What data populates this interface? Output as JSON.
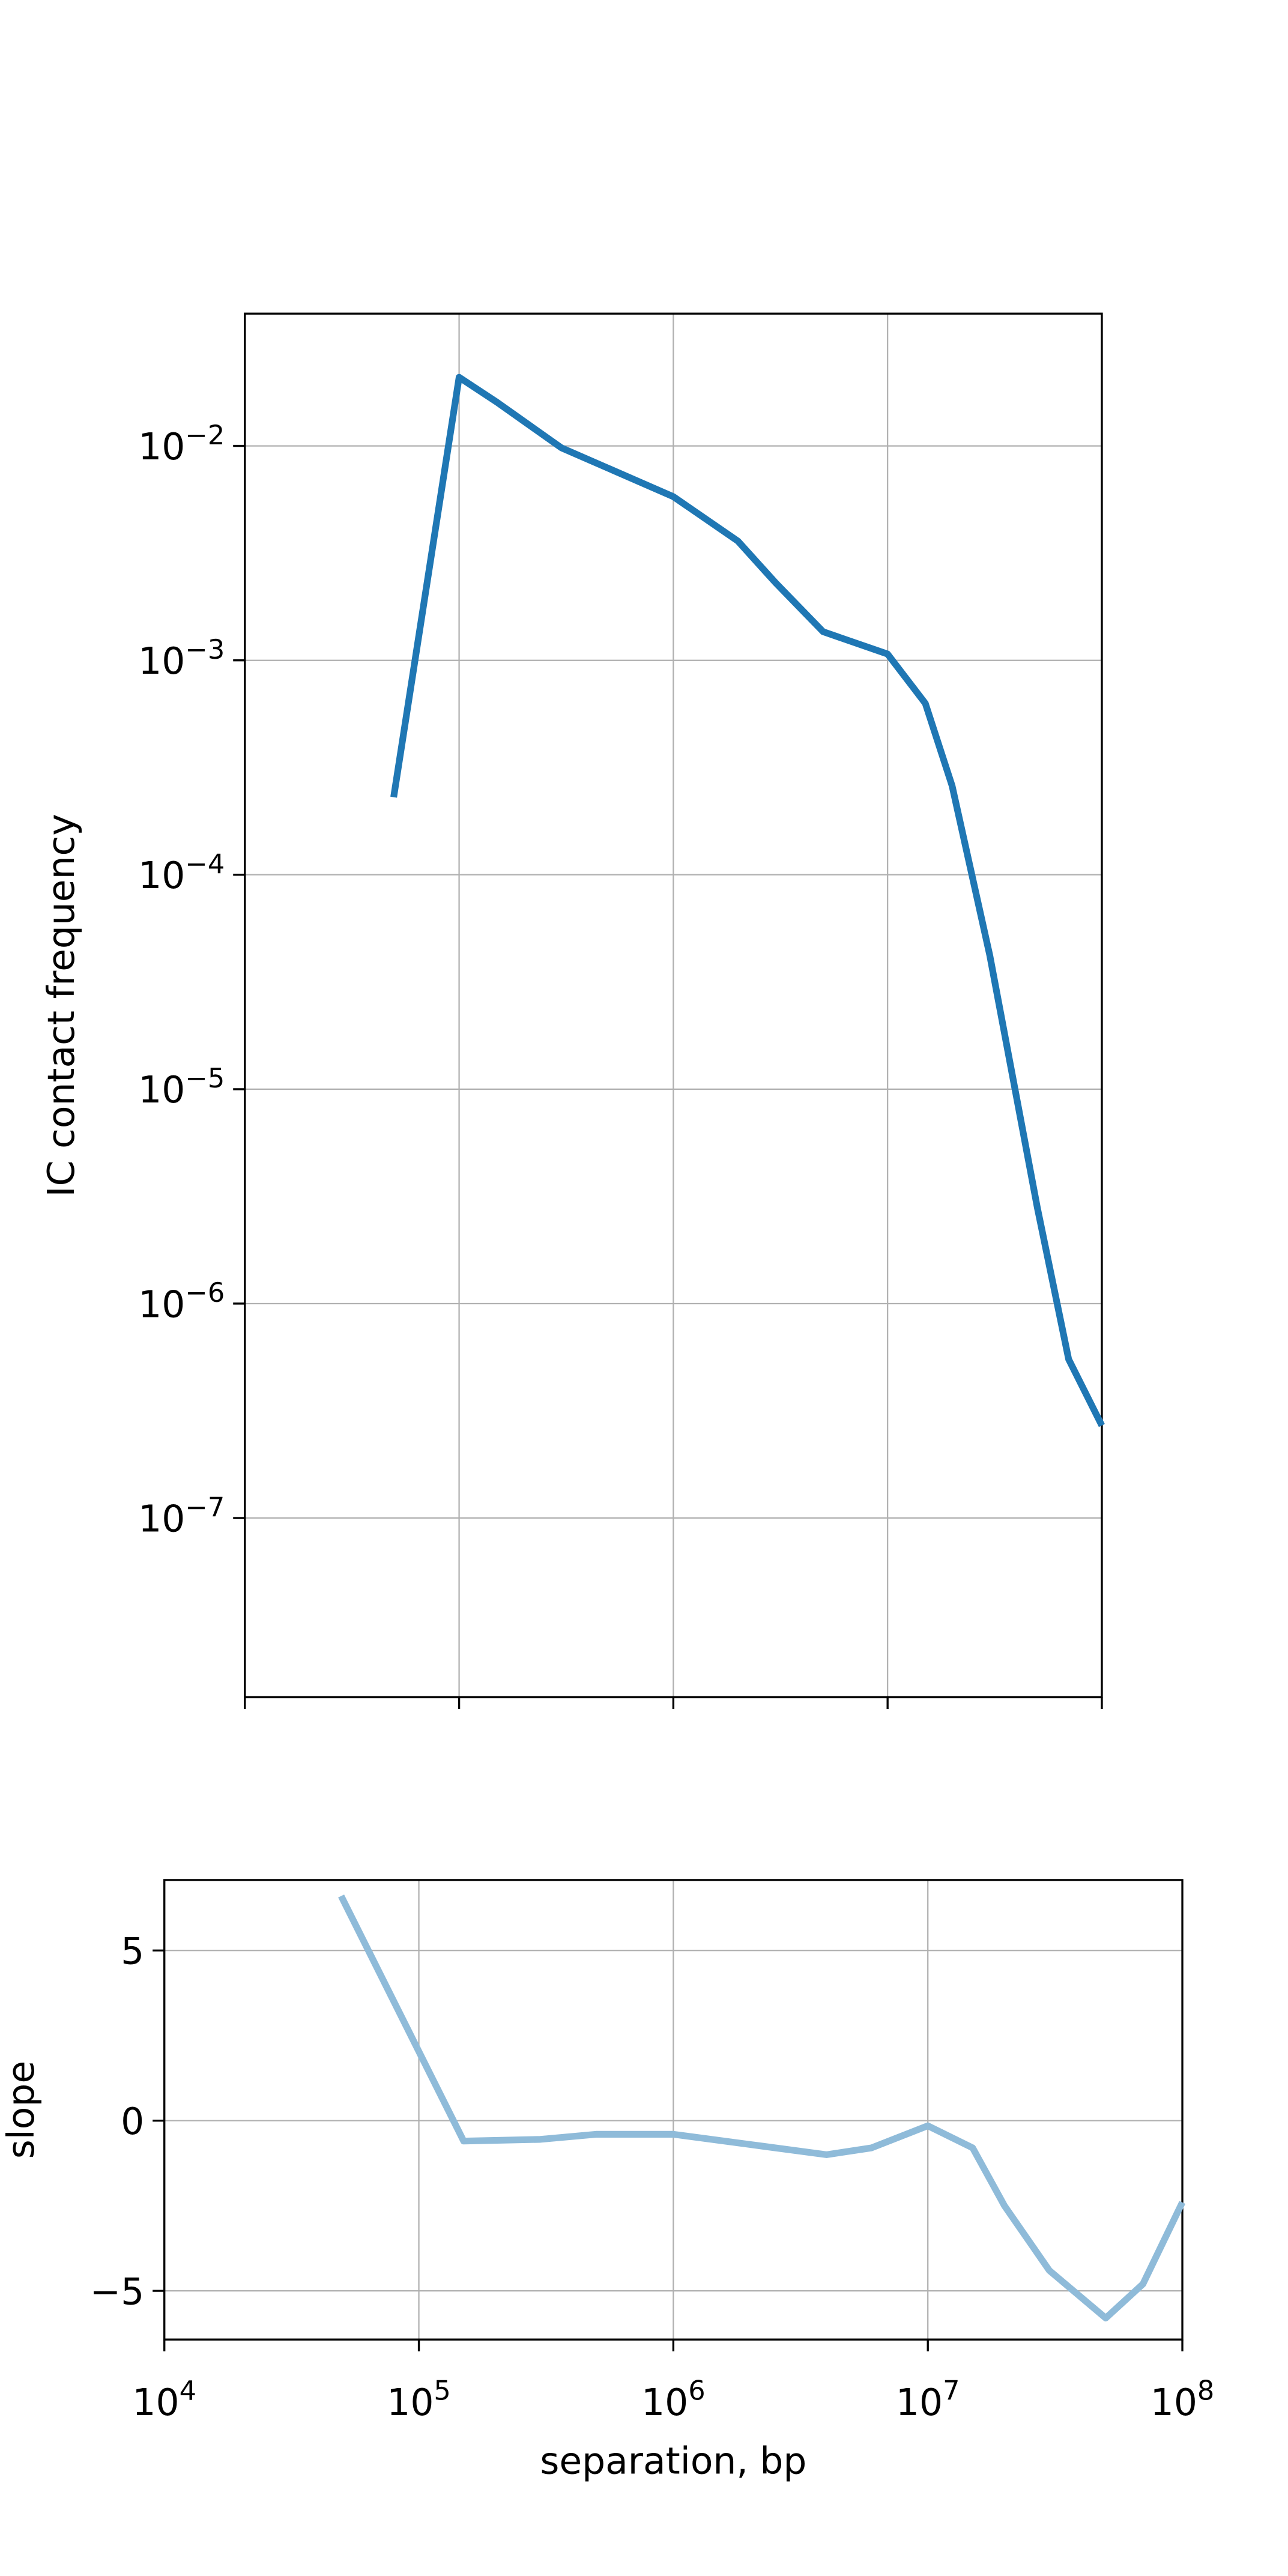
{
  "chart_data": [
    {
      "type": "line",
      "ylabel": "IC contact frequency",
      "color": "#1f77b4",
      "log_x": true,
      "log_y": true,
      "grid": true,
      "xticklabels": false,
      "xlim": [
        10000,
        100000000
      ],
      "ylim": [
        1.46e-08,
        0.0414
      ],
      "xticks": [
        10000,
        100000,
        1000000,
        10000000,
        100000000
      ],
      "yticks": [
        {
          "value": 0.01,
          "label": "10",
          "exponent": "−2"
        },
        {
          "value": 0.001,
          "label": "10",
          "exponent": "−3"
        },
        {
          "value": 0.0001,
          "label": "10",
          "exponent": "−4"
        },
        {
          "value": 1e-05,
          "label": "10",
          "exponent": "−5"
        },
        {
          "value": 1e-06,
          "label": "10",
          "exponent": "−6"
        },
        {
          "value": 1e-07,
          "label": "10",
          "exponent": "−7"
        }
      ],
      "x": [
        49500,
        100000,
        150000,
        300000,
        1000000,
        2000000,
        3000000,
        5000000,
        10000000,
        15000000,
        20000000,
        30000000,
        50000000,
        70000000,
        100000000
      ],
      "values": [
        0.00023,
        0.0209,
        0.016,
        0.0098,
        0.0058,
        0.0036,
        0.0023,
        0.00136,
        0.00107,
        0.00063,
        0.00026,
        4.2e-05,
        2.8e-06,
        5.5e-07,
        2.7e-07
      ]
    },
    {
      "type": "line",
      "ylabel": "slope",
      "xlabel": "separation, bp",
      "color": "#8fbbd9",
      "log_x": true,
      "log_y": false,
      "grid": true,
      "xticklabels": true,
      "xlim": [
        10000,
        100000000
      ],
      "ylim": [
        -6.43,
        7.07
      ],
      "xticks": [
        {
          "value": 10000,
          "label": "10",
          "exponent": "4"
        },
        {
          "value": 100000,
          "label": "10",
          "exponent": "5"
        },
        {
          "value": 1000000,
          "label": "10",
          "exponent": "6"
        },
        {
          "value": 10000000,
          "label": "10",
          "exponent": "7"
        },
        {
          "value": 100000000,
          "label": "10",
          "exponent": "8"
        }
      ],
      "yticks": [
        {
          "value": -5,
          "label": "−5"
        },
        0,
        5
      ],
      "x": [
        49500,
        150000,
        300000,
        500000,
        1000000,
        2000000,
        4000000,
        6000000,
        10000000,
        15000000,
        20000000,
        30000000,
        50000000,
        70000000,
        100000000
      ],
      "values": [
        6.6,
        -0.6,
        -0.55,
        -0.4,
        -0.4,
        -0.7,
        -1.0,
        -0.8,
        -0.15,
        -0.8,
        -2.5,
        -4.4,
        -5.8,
        -4.8,
        -2.4
      ]
    }
  ]
}
